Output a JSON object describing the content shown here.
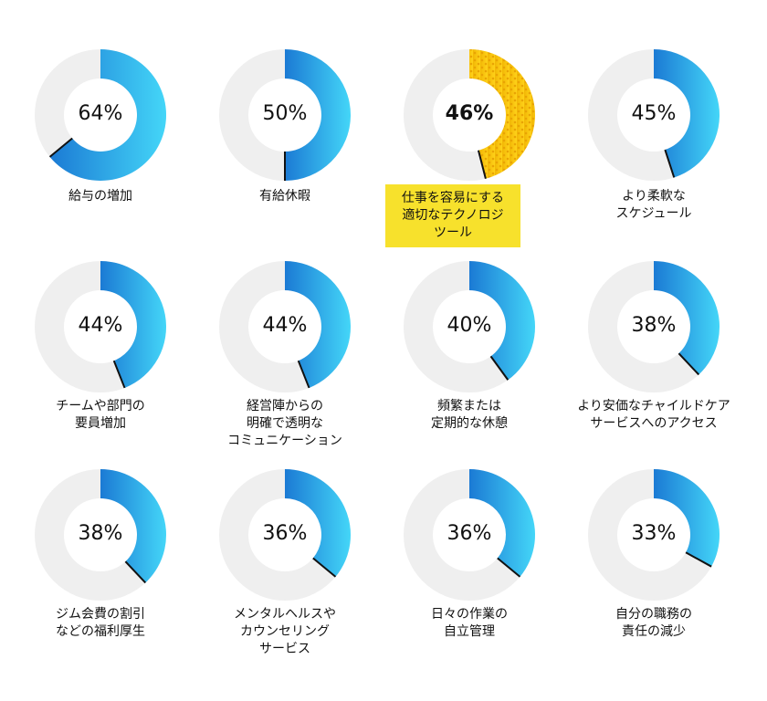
{
  "chart_data": {
    "type": "donut",
    "items": [
      {
        "value": 64,
        "display": "64%",
        "label_lines": [
          "給与の増加"
        ]
      },
      {
        "value": 50,
        "display": "50%",
        "label_lines": [
          "有給休暇"
        ]
      },
      {
        "value": 46,
        "display": "46%",
        "label_lines": [
          "仕事を容易にする",
          "適切なテクノロジ",
          "ツール"
        ],
        "highlighted": true
      },
      {
        "value": 45,
        "display": "45%",
        "label_lines": [
          "より柔軟な",
          "スケジュール"
        ]
      },
      {
        "value": 44,
        "display": "44%",
        "label_lines": [
          "チームや部門の",
          "要員増加"
        ]
      },
      {
        "value": 44,
        "display": "44%",
        "label_lines": [
          "経営陣からの",
          "明確で透明な",
          "コミュニケーション"
        ]
      },
      {
        "value": 40,
        "display": "40%",
        "label_lines": [
          "頻繁または",
          "定期的な休憩"
        ]
      },
      {
        "value": 38,
        "display": "38%",
        "label_lines": [
          "より安価なチャイルドケア",
          "サービスへのアクセス"
        ]
      },
      {
        "value": 38,
        "display": "38%",
        "label_lines": [
          "ジム会費の割引",
          "などの福利厚生"
        ]
      },
      {
        "value": 36,
        "display": "36%",
        "label_lines": [
          "メンタルヘルスや",
          "カウンセリング",
          "サービス"
        ]
      },
      {
        "value": 36,
        "display": "36%",
        "label_lines": [
          "日々の作業の",
          "自立管理"
        ]
      },
      {
        "value": 33,
        "display": "33%",
        "label_lines": [
          "自分の職務の",
          "責任の減少"
        ]
      }
    ]
  },
  "colors": {
    "ring_background": "#efefef",
    "gradient_dark": "#1b7ad4",
    "gradient_light": "#44d6f8",
    "highlight_dark": "#f2b705",
    "highlight_light": "#ffd21a",
    "highlight_label_bg": "#f7e12c",
    "end_tick": "#111111"
  }
}
